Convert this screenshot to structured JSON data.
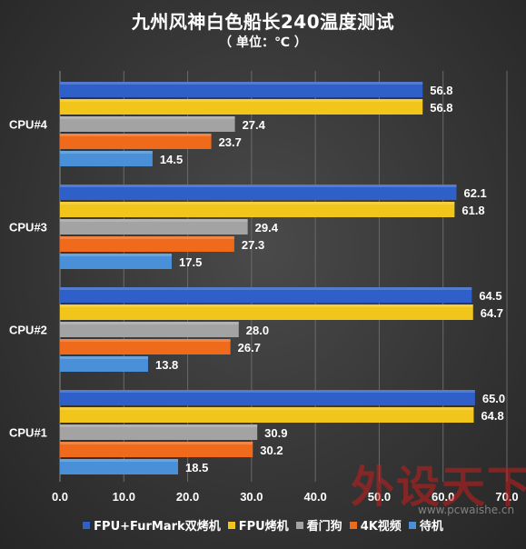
{
  "chart_data": {
    "type": "bar",
    "orientation": "horizontal",
    "title": "九州风神白色船长240温度测试",
    "subtitle": "（ 单位：℃ ）",
    "categories": [
      "CPU#4",
      "CPU#3",
      "CPU#2",
      "CPU#1"
    ],
    "series": [
      {
        "name": "FPU+FurMark双烤机",
        "color": "#2f5fc8",
        "values": [
          56.8,
          62.1,
          64.5,
          65.0
        ]
      },
      {
        "name": "FPU烤机",
        "color": "#f2c51a",
        "values": [
          56.8,
          61.8,
          64.7,
          64.8
        ]
      },
      {
        "name": "看门狗",
        "color": "#a3a3a3",
        "values": [
          27.4,
          29.4,
          28.0,
          30.9
        ]
      },
      {
        "name": "4K视频",
        "color": "#f06a1c",
        "values": [
          23.7,
          27.3,
          26.7,
          30.2
        ]
      },
      {
        "name": "待机",
        "color": "#4a90d8",
        "values": [
          14.5,
          17.5,
          13.8,
          18.5
        ]
      }
    ],
    "xlim": [
      0,
      70
    ],
    "xticks": [
      "0.0",
      "10.0",
      "20.0",
      "30.0",
      "40.0",
      "50.0",
      "60.0",
      "70.0"
    ],
    "grid": true,
    "legend_position": "bottom"
  },
  "watermark": {
    "text": "外设天下",
    "url": "www.pcwaishe.cn"
  }
}
